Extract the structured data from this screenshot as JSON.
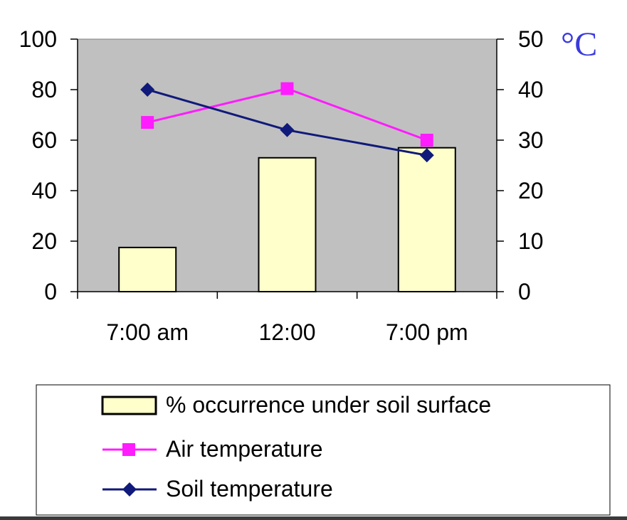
{
  "chart_data": {
    "type": "bar+line",
    "categories": [
      "7:00 am",
      "12:00",
      "7:00 pm"
    ],
    "bars": {
      "name": "% occurrence under soil surface",
      "axis": "left",
      "values": [
        17.5,
        53,
        57
      ]
    },
    "series": [
      {
        "name": "Air temperature",
        "axis": "right",
        "values": [
          33.5,
          40.2,
          30
        ],
        "color": "#ff1cff",
        "marker": "square"
      },
      {
        "name": "Soil temperature",
        "axis": "right",
        "values": [
          40,
          32,
          27
        ],
        "color": "#101a7a",
        "marker": "diamond"
      }
    ],
    "y_left": {
      "lim": [
        0,
        100
      ],
      "ticks": [
        "0",
        "20",
        "40",
        "60",
        "80",
        "100"
      ]
    },
    "y_right": {
      "lim": [
        0,
        50
      ],
      "ticks": [
        "0",
        "10",
        "20",
        "30",
        "40",
        "50"
      ],
      "unit_label": "°C"
    },
    "colors": {
      "plot_bg": "#c0c0c0",
      "bar_fill": "#ffffcc",
      "bar_stroke": "#000000"
    },
    "grid": false,
    "legend_position": "bottom"
  }
}
